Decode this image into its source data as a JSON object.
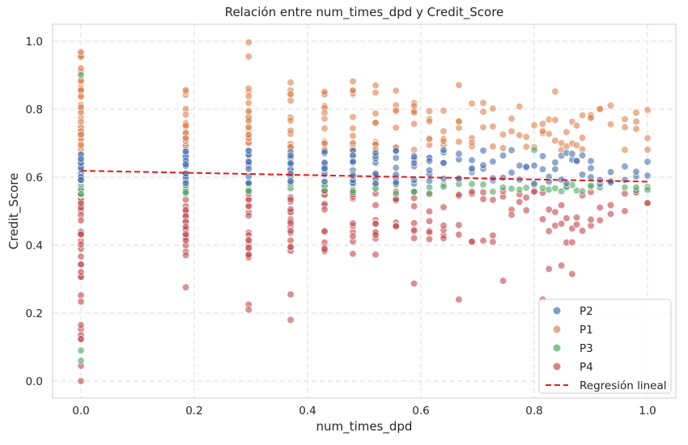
{
  "chart_data": {
    "type": "scatter",
    "title": "Relación entre num_times_dpd y Credit_Score",
    "xlabel": "num_times_dpd",
    "ylabel": "Credit_Score",
    "xlim": [
      -0.05,
      1.05
    ],
    "ylim": [
      -0.05,
      1.05
    ],
    "xticks": [
      "0.0",
      "0.2",
      "0.4",
      "0.6",
      "0.8",
      "1.0"
    ],
    "yticks": [
      "0.0",
      "0.2",
      "0.4",
      "0.6",
      "0.8",
      "1.0"
    ],
    "grid": true,
    "legend_position": "bottom-right",
    "x_levels": [
      0,
      0.185,
      0.296,
      0.37,
      0.43,
      0.48,
      0.52,
      0.556,
      0.588,
      0.615,
      0.64,
      0.667,
      0.69,
      0.71,
      0.727,
      0.745,
      0.76,
      0.774,
      0.786,
      0.8,
      0.815,
      0.826,
      0.837,
      0.848,
      0.857,
      0.867,
      0.875,
      0.885,
      0.9,
      0.916,
      0.935,
      0.96,
      0.98,
      1.0
    ],
    "series": [
      {
        "name": "P2",
        "color": "#4c72b0",
        "y_range": [
          0.58,
          0.68
        ],
        "outliers": [
          [
            0.935,
            0.615
          ],
          [
            0.9,
            0.6
          ]
        ]
      },
      {
        "name": "P1",
        "color": "#dd8452",
        "y_range": [
          0.68,
          1.0
        ],
        "outliers": [
          [
            0.296,
            0.997
          ],
          [
            0.296,
            0.955
          ],
          [
            0.48,
            0.882
          ],
          [
            0.667,
            0.871
          ],
          [
            0.837,
            0.852
          ],
          [
            0.96,
            0.747
          ],
          [
            1.0,
            0.715
          ],
          [
            0.98,
            0.79
          ],
          [
            0.885,
            0.782
          ],
          [
            0.9,
            0.775
          ],
          [
            0.815,
            0.757
          ]
        ]
      },
      {
        "name": "P3",
        "color": "#55a868",
        "y_range": [
          0.55,
          0.585
        ],
        "outliers": [
          [
            0,
            0.9
          ],
          [
            0,
            0.09
          ],
          [
            0,
            0.06
          ],
          [
            0.8,
            0.68
          ],
          [
            0.98,
            0.57
          ],
          [
            1.0,
            0.563
          ],
          [
            0.9,
            0.575
          ],
          [
            0.857,
            0.57
          ]
        ]
      },
      {
        "name": "P4",
        "color": "#c44e52",
        "y_range": [
          0.3,
          0.56
        ],
        "outliers": [
          [
            0,
            0.0
          ],
          [
            0,
            0.045
          ],
          [
            0.185,
            0.276
          ],
          [
            0.296,
            0.225
          ],
          [
            0.296,
            0.21
          ],
          [
            0.37,
            0.18
          ],
          [
            0.37,
            0.255
          ],
          [
            0.588,
            0.287
          ],
          [
            0.667,
            0.24
          ],
          [
            0.745,
            0.295
          ],
          [
            0.815,
            0.24
          ],
          [
            0.848,
            0.34
          ],
          [
            0.867,
            0.315
          ],
          [
            0.9,
            0.475
          ],
          [
            0.826,
            0.33
          ]
        ]
      }
    ],
    "regression": {
      "name": "Regresión lineal",
      "color": "#e31a1c",
      "x": [
        0,
        1
      ],
      "y": [
        0.619,
        0.587
      ]
    }
  }
}
